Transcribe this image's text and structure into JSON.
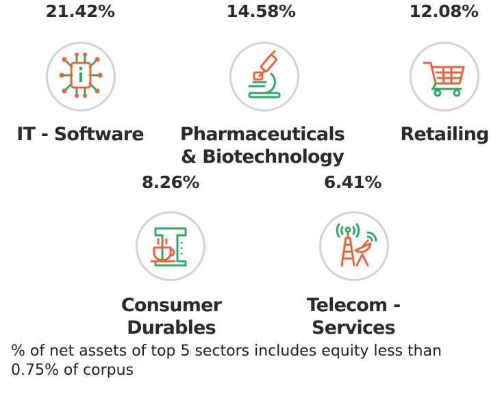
{
  "sectors": [
    {
      "percent": "21.42%",
      "label": "IT - Software",
      "icon": "chip-icon"
    },
    {
      "percent": "14.58%",
      "label_line1": "Pharmaceuticals",
      "label_line2": "& Biotechnology",
      "icon": "microscope-icon"
    },
    {
      "percent": "12.08%",
      "label": "Retailing",
      "icon": "shopping-cart-icon"
    },
    {
      "percent": "8.26%",
      "label_line1": "Consumer",
      "label_line2": "Durables",
      "icon": "coffee-maker-icon"
    },
    {
      "percent": "6.41%",
      "label_line1": "Telecom -",
      "label_line2": "Services",
      "icon": "telecom-tower-icon"
    }
  ],
  "footnote_line1": "% of net assets of top 5 sectors includes equity less than",
  "footnote_line2": "0.75% of corpus",
  "colors": {
    "orange": "#e8643c",
    "green": "#2fa866",
    "circle_border": "#d2d2d2",
    "text": "#2b2b2b"
  }
}
